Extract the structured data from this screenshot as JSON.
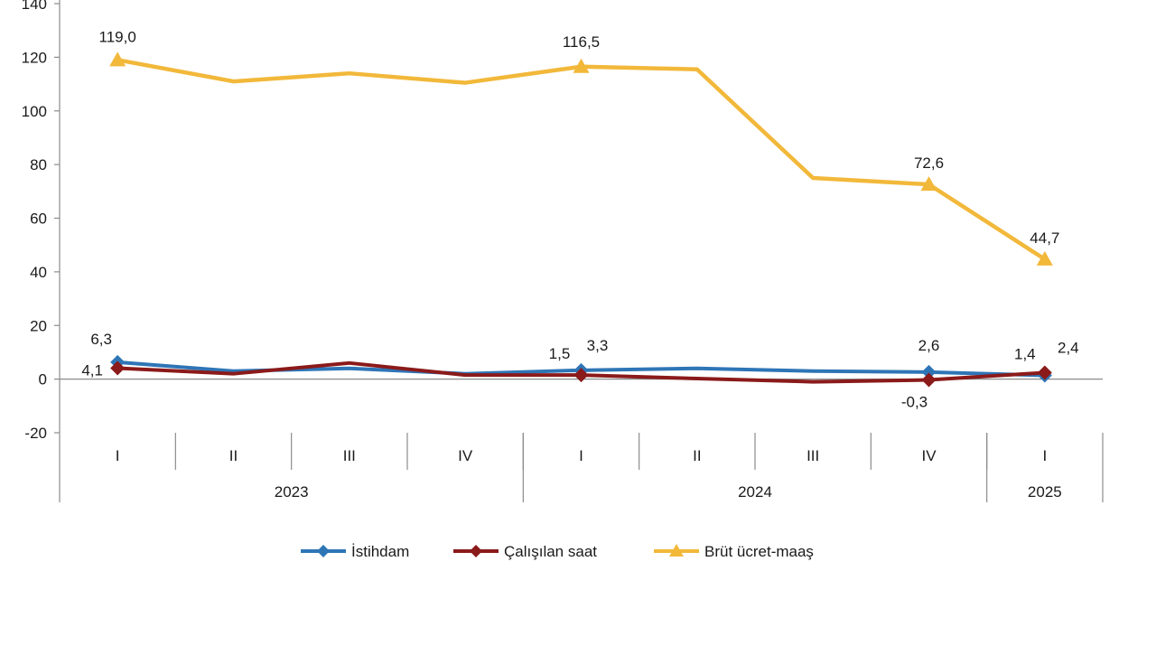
{
  "chart_data": {
    "type": "line",
    "title": "",
    "xlabel": "",
    "ylabel": "",
    "ylim": [
      -20,
      140
    ],
    "yticks": [
      -20,
      0,
      20,
      40,
      60,
      80,
      100,
      120,
      140
    ],
    "grid": false,
    "legend_position": "bottom",
    "categories": [
      "I",
      "II",
      "III",
      "IV",
      "I",
      "II",
      "III",
      "IV",
      "I"
    ],
    "groups": [
      {
        "label": "2023",
        "count": 4
      },
      {
        "label": "2024",
        "count": 4
      },
      {
        "label": "2025",
        "count": 1
      }
    ],
    "series": [
      {
        "name": "İstihdam",
        "color": "#2e75b6",
        "marker": "diamond",
        "values": [
          6.3,
          3.0,
          4.0,
          2.0,
          3.3,
          4.0,
          3.0,
          2.6,
          1.4
        ],
        "labels": {
          "0": "6,3",
          "4": "3,3",
          "7": "2,6",
          "8": "1,4"
        }
      },
      {
        "name": "Çalışılan saat",
        "color": "#8b1a1a",
        "marker": "diamond",
        "values": [
          4.1,
          2.0,
          6.0,
          1.5,
          1.5,
          0.2,
          -1.0,
          -0.3,
          2.4
        ],
        "labels": {
          "0": "4,1",
          "4": "1,5",
          "7": "-0,3",
          "8": "2,4"
        }
      },
      {
        "name": "Brüt ücret-maaş",
        "color": "#f2b83a",
        "marker": "triangle",
        "values": [
          119.0,
          111.0,
          114.0,
          110.5,
          116.5,
          115.5,
          75.0,
          72.6,
          44.7
        ],
        "labels": {
          "0": "119,0",
          "4": "116,5",
          "7": "72,6",
          "8": "44,7"
        }
      }
    ]
  }
}
